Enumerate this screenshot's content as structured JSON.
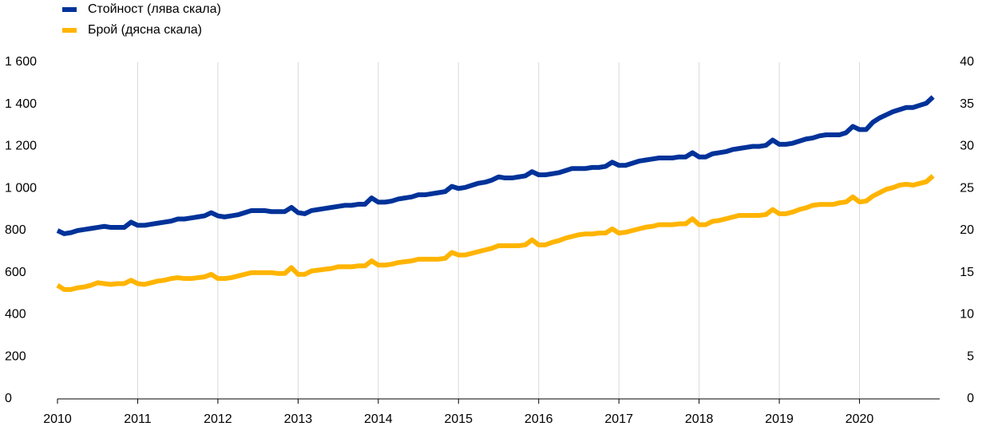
{
  "chart_data": {
    "type": "line",
    "x": [
      2010,
      2010.083,
      2010.167,
      2010.25,
      2010.333,
      2010.417,
      2010.5,
      2010.583,
      2010.667,
      2010.75,
      2010.833,
      2010.917,
      2011,
      2011.083,
      2011.167,
      2011.25,
      2011.333,
      2011.417,
      2011.5,
      2011.583,
      2011.667,
      2011.75,
      2011.833,
      2011.917,
      2012,
      2012.083,
      2012.167,
      2012.25,
      2012.333,
      2012.417,
      2012.5,
      2012.583,
      2012.667,
      2012.75,
      2012.833,
      2012.917,
      2013,
      2013.083,
      2013.167,
      2013.25,
      2013.333,
      2013.417,
      2013.5,
      2013.583,
      2013.667,
      2013.75,
      2013.833,
      2013.917,
      2014,
      2014.083,
      2014.167,
      2014.25,
      2014.333,
      2014.417,
      2014.5,
      2014.583,
      2014.667,
      2014.75,
      2014.833,
      2014.917,
      2015,
      2015.083,
      2015.167,
      2015.25,
      2015.333,
      2015.417,
      2015.5,
      2015.583,
      2015.667,
      2015.75,
      2015.833,
      2015.917,
      2016,
      2016.083,
      2016.167,
      2016.25,
      2016.333,
      2016.417,
      2016.5,
      2016.583,
      2016.667,
      2016.75,
      2016.833,
      2016.917,
      2017,
      2017.083,
      2017.167,
      2017.25,
      2017.333,
      2017.417,
      2017.5,
      2017.583,
      2017.667,
      2017.75,
      2017.833,
      2017.917,
      2018,
      2018.083,
      2018.167,
      2018.25,
      2018.333,
      2018.417,
      2018.5,
      2018.583,
      2018.667,
      2018.75,
      2018.833,
      2018.917,
      2019,
      2019.083,
      2019.167,
      2019.25,
      2019.333,
      2019.417,
      2019.5,
      2019.583,
      2019.667,
      2019.75,
      2019.833,
      2019.917,
      2020,
      2020.083,
      2020.167,
      2020.25,
      2020.333,
      2020.417,
      2020.5,
      2020.583,
      2020.667,
      2020.75,
      2020.833,
      2020.917
    ],
    "series": [
      {
        "name": "Стойност (лява скала)",
        "color": "#003299",
        "values": [
          800,
          785,
          790,
          800,
          805,
          810,
          815,
          820,
          815,
          815,
          815,
          840,
          825,
          825,
          830,
          835,
          840,
          845,
          855,
          855,
          860,
          865,
          870,
          885,
          870,
          865,
          870,
          875,
          885,
          895,
          895,
          895,
          890,
          890,
          890,
          910,
          885,
          880,
          895,
          900,
          905,
          910,
          915,
          920,
          920,
          925,
          925,
          955,
          935,
          935,
          940,
          950,
          955,
          960,
          970,
          970,
          975,
          980,
          985,
          1010,
          1000,
          1005,
          1015,
          1025,
          1030,
          1040,
          1055,
          1050,
          1050,
          1055,
          1060,
          1080,
          1065,
          1065,
          1070,
          1075,
          1085,
          1095,
          1095,
          1095,
          1100,
          1100,
          1105,
          1125,
          1110,
          1110,
          1120,
          1130,
          1135,
          1140,
          1145,
          1145,
          1145,
          1150,
          1150,
          1170,
          1150,
          1150,
          1165,
          1170,
          1175,
          1185,
          1190,
          1195,
          1200,
          1200,
          1205,
          1230,
          1210,
          1210,
          1215,
          1225,
          1235,
          1240,
          1250,
          1255,
          1255,
          1255,
          1265,
          1295,
          1280,
          1280,
          1315,
          1335,
          1350,
          1365,
          1375,
          1385,
          1385,
          1395,
          1405,
          1435
        ]
      },
      {
        "name": "Брой (дясна скала)",
        "color": "#ffb400",
        "axis": "y2",
        "values": [
          13.5,
          13,
          13,
          13.2,
          13.3,
          13.5,
          13.8,
          13.7,
          13.6,
          13.7,
          13.7,
          14.1,
          13.7,
          13.6,
          13.8,
          14,
          14.1,
          14.3,
          14.4,
          14.3,
          14.3,
          14.4,
          14.5,
          14.8,
          14.3,
          14.3,
          14.4,
          14.6,
          14.8,
          15,
          15,
          15,
          15,
          14.9,
          14.9,
          15.6,
          14.8,
          14.8,
          15.2,
          15.3,
          15.4,
          15.5,
          15.7,
          15.7,
          15.7,
          15.8,
          15.8,
          16.4,
          15.9,
          15.9,
          16,
          16.2,
          16.3,
          16.4,
          16.6,
          16.6,
          16.6,
          16.6,
          16.7,
          17.4,
          17.1,
          17.1,
          17.3,
          17.5,
          17.7,
          17.9,
          18.2,
          18.2,
          18.2,
          18.2,
          18.3,
          18.9,
          18.3,
          18.3,
          18.6,
          18.8,
          19.1,
          19.3,
          19.5,
          19.6,
          19.6,
          19.7,
          19.7,
          20.2,
          19.7,
          19.8,
          20,
          20.2,
          20.4,
          20.5,
          20.7,
          20.7,
          20.7,
          20.8,
          20.8,
          21.4,
          20.7,
          20.7,
          21.1,
          21.2,
          21.4,
          21.6,
          21.8,
          21.8,
          21.8,
          21.8,
          21.9,
          22.5,
          22,
          22,
          22.2,
          22.5,
          22.7,
          23,
          23.1,
          23.1,
          23.1,
          23.3,
          23.4,
          24,
          23.4,
          23.5,
          24.1,
          24.5,
          24.9,
          25.1,
          25.4,
          25.5,
          25.4,
          25.6,
          25.8,
          26.5
        ]
      }
    ],
    "xlim": [
      2010,
      2021
    ],
    "xticks": [
      2010,
      2011,
      2012,
      2013,
      2014,
      2015,
      2016,
      2017,
      2018,
      2019,
      2020
    ],
    "ylim": [
      0,
      1600
    ],
    "yticks": [
      0,
      200,
      400,
      600,
      800,
      {
        "value": 1000,
        "label": "1 000"
      },
      {
        "value": 1200,
        "label": "1 200"
      },
      {
        "value": 1400,
        "label": "1 400"
      },
      {
        "value": 1600,
        "label": "1 600"
      }
    ],
    "y2lim": [
      0,
      40
    ],
    "y2ticks": [
      0,
      5,
      10,
      15,
      20,
      25,
      30,
      35,
      40
    ],
    "grid": true,
    "legend": "top-left"
  }
}
